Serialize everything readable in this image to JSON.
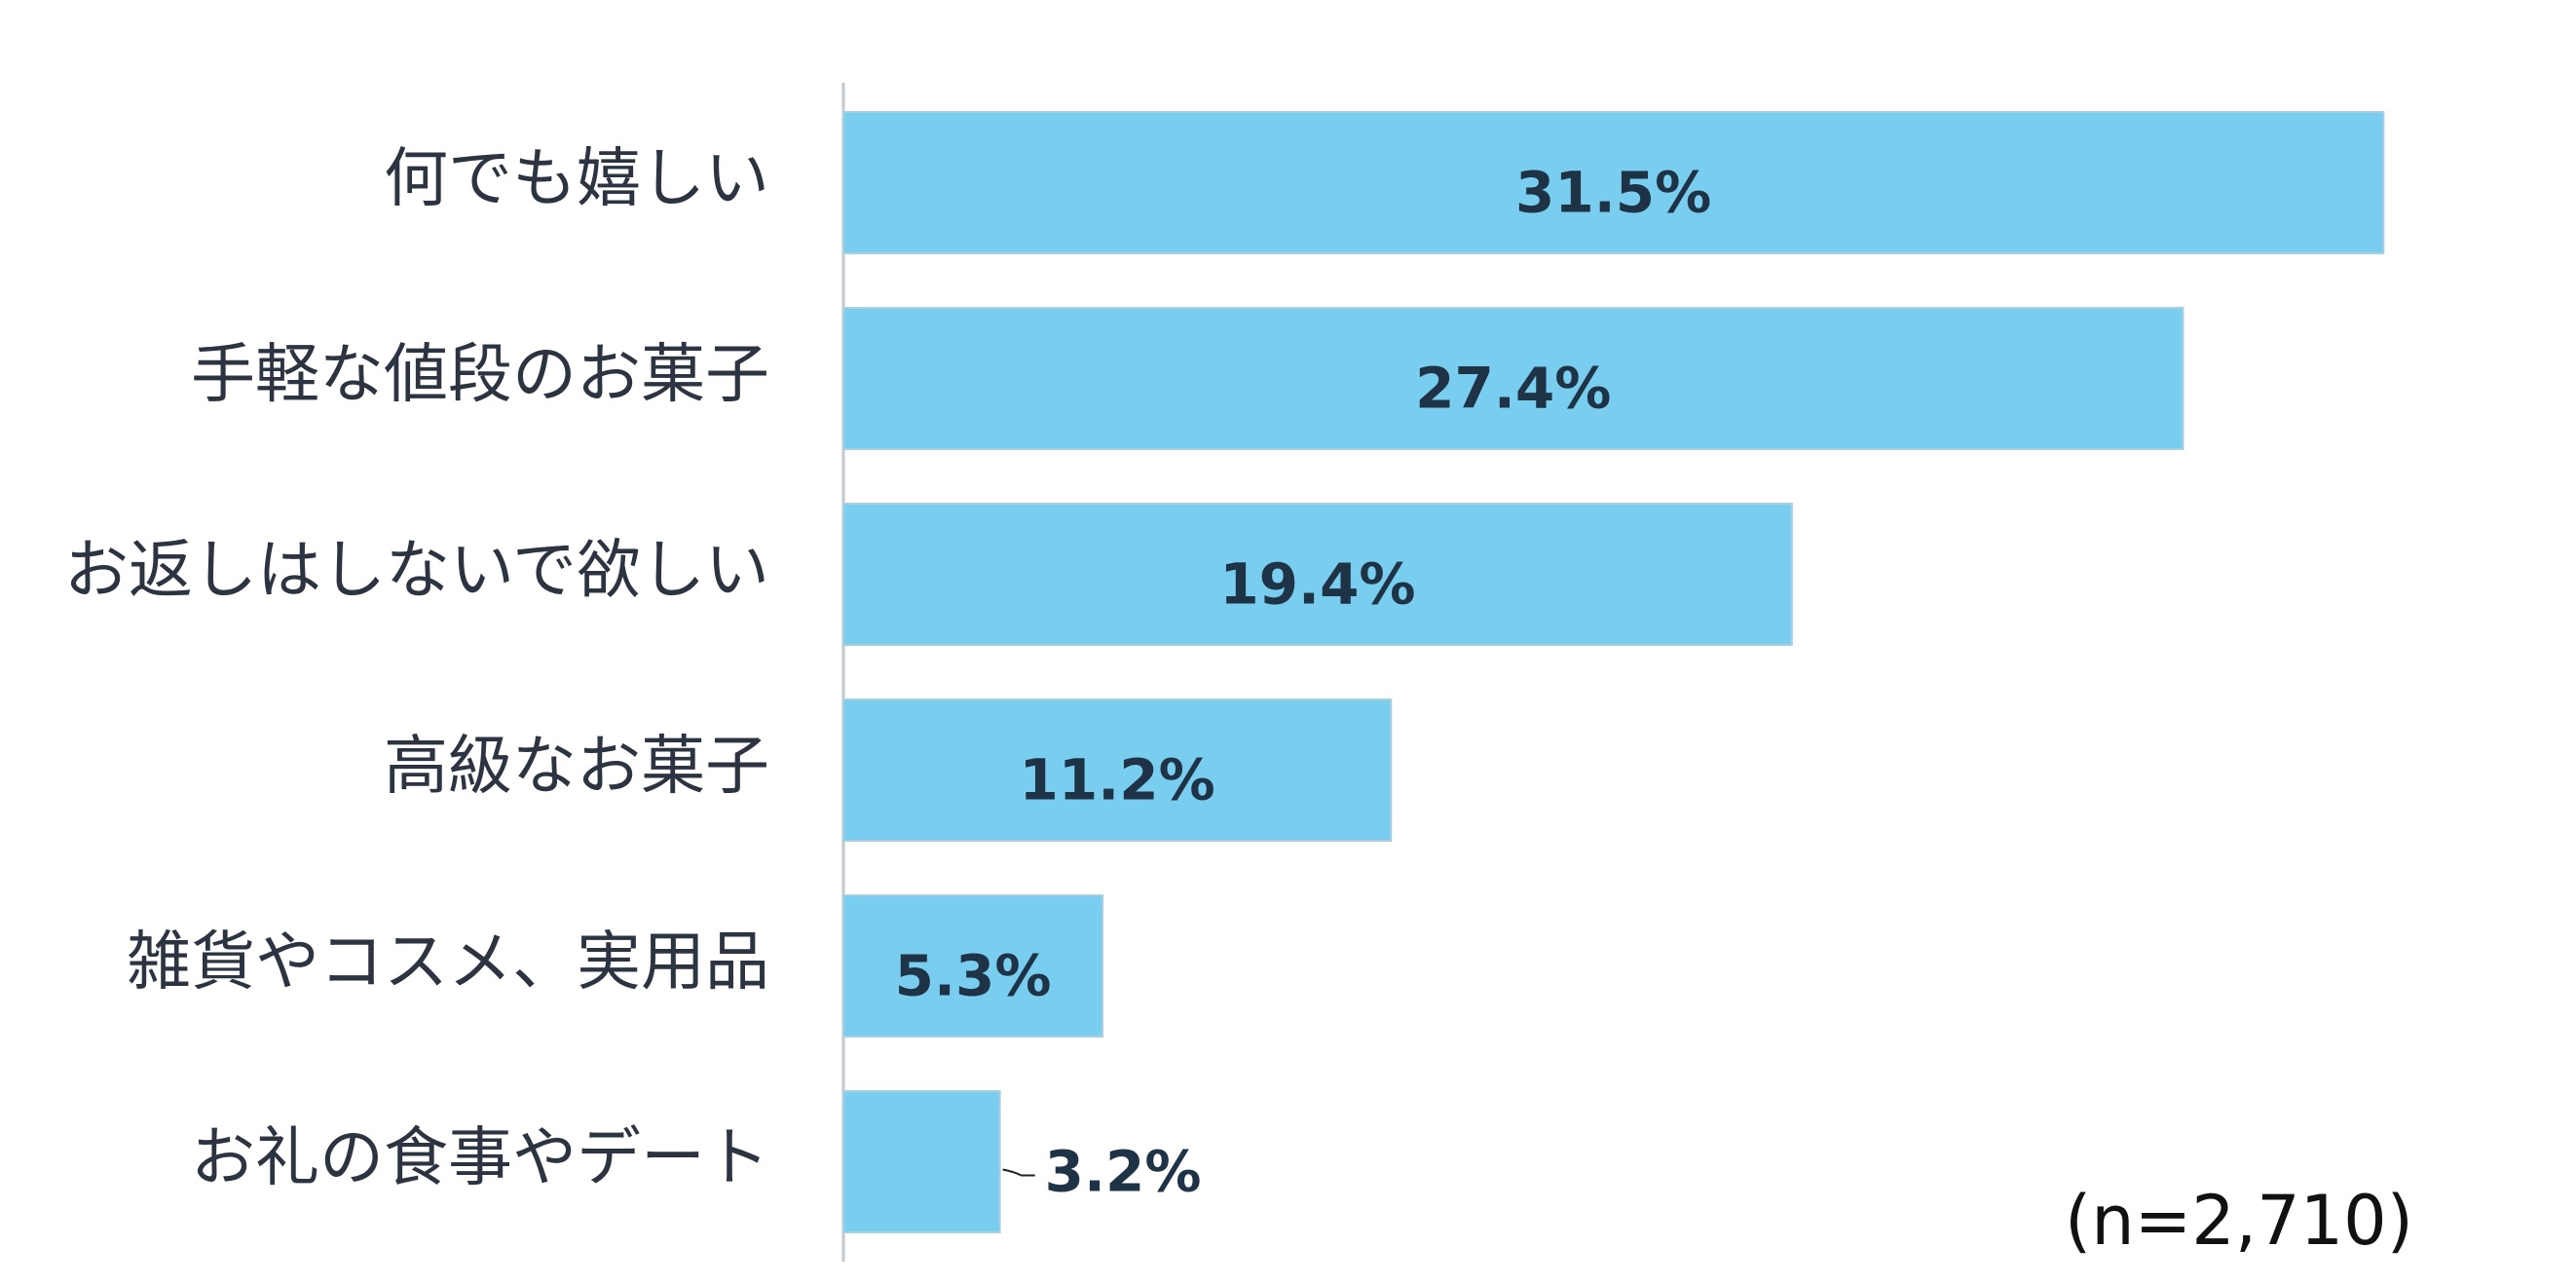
{
  "chart_data": {
    "type": "bar",
    "orientation": "horizontal",
    "categories": [
      "何でも嬉しい",
      "手軽な値段のお菓子",
      "お返しはしないで欲しい",
      "高級なお菓子",
      "雑貨やコスメ、実用品",
      "お礼の食事やデート"
    ],
    "values": [
      31.5,
      27.4,
      19.4,
      11.2,
      5.3,
      3.2
    ],
    "value_labels": [
      "31.5%",
      "27.4%",
      "19.4%",
      "11.2%",
      "5.3%",
      "3.2%"
    ],
    "unit": "%",
    "xlim": [
      0,
      35
    ],
    "grid": false,
    "legend": "none",
    "bar_color": "#79cdef",
    "annotation": "(n=2,710)"
  }
}
